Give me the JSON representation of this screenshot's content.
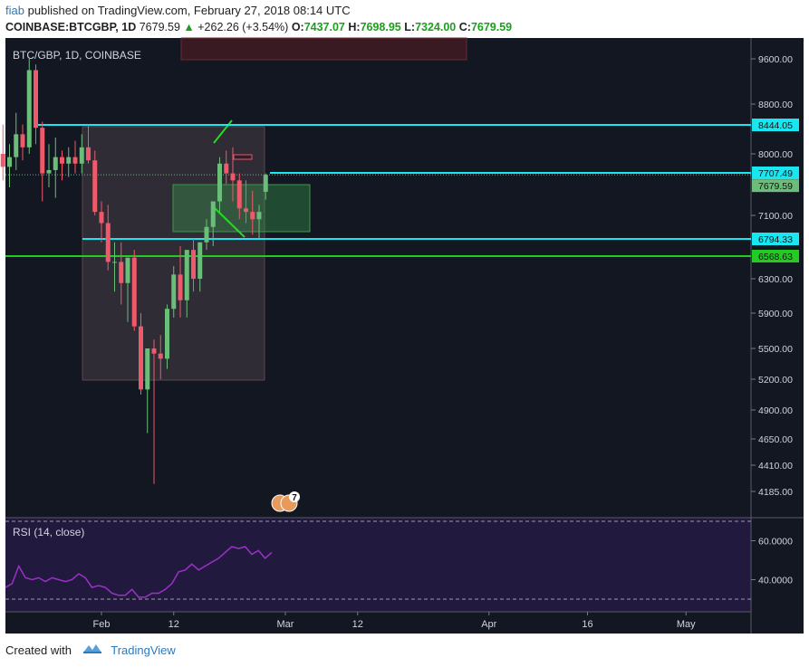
{
  "header": {
    "author": "fiab",
    "published": "published on TradingView.com, February 27, 2018 08:14 UTC",
    "symbol": "COINBASE:BTCGBP, 1D",
    "last": "7679.59",
    "change": "+262.26 (+3.54%)",
    "o_label": "O:",
    "o_value": "7437.07",
    "h_label": "H:",
    "h_value": "7698.95",
    "l_label": "L:",
    "l_value": "7324.00",
    "c_label": "C:",
    "c_value": "7679.59"
  },
  "footer": {
    "created_with": "Created with",
    "brand": "TradingView"
  },
  "colors": {
    "up": "#6bbd7a",
    "down": "#ef5a6a",
    "cyan": "#19e6f0",
    "green_line": "#22cc22",
    "rsi_line": "#9b30c8",
    "rsi_bg": "#221a3e",
    "chart_bg": "#131722"
  },
  "chart_data": {
    "type": "candlestick",
    "title": "BTC/GBP, 1D, COINBASE",
    "y_ticks": [
      9600,
      8800,
      8000,
      7100,
      6300,
      5900,
      5500,
      5200,
      4900,
      4650,
      4410,
      4185
    ],
    "y_tick_labels": [
      "9600.00",
      "8800.00",
      "8000.00",
      "7100.00",
      "6300.00",
      "5900.00",
      "5500.00",
      "5200.00",
      "4900.00",
      "4650.00",
      "4410.00",
      "4185.00"
    ],
    "x_labels": [
      "Feb",
      "12",
      "Mar",
      "12",
      "Apr",
      "16",
      "May"
    ],
    "x_dates": [
      "2018-02-01",
      "2018-02-12",
      "2018-03-01",
      "2018-03-12",
      "2018-04-01",
      "2018-04-16",
      "2018-05-01"
    ],
    "candles": [
      {
        "date": "2018-01-17",
        "o": 8000,
        "h": 8450,
        "l": 7600,
        "c": 7800
      },
      {
        "date": "2018-01-18",
        "o": 7800,
        "h": 8150,
        "l": 7500,
        "c": 7950
      },
      {
        "date": "2018-01-19",
        "o": 7950,
        "h": 8650,
        "l": 7750,
        "c": 8300
      },
      {
        "date": "2018-01-20",
        "o": 8300,
        "h": 8450,
        "l": 7900,
        "c": 8100
      },
      {
        "date": "2018-01-21",
        "o": 8100,
        "h": 9600,
        "l": 8000,
        "c": 9400
      },
      {
        "date": "2018-01-22",
        "o": 9400,
        "h": 9500,
        "l": 8150,
        "c": 8400
      },
      {
        "date": "2018-01-23",
        "o": 8400,
        "h": 8500,
        "l": 7300,
        "c": 7700
      },
      {
        "date": "2018-01-24",
        "o": 7700,
        "h": 8150,
        "l": 7500,
        "c": 7750
      },
      {
        "date": "2018-01-25",
        "o": 7750,
        "h": 8250,
        "l": 7350,
        "c": 7950
      },
      {
        "date": "2018-01-26",
        "o": 7950,
        "h": 8050,
        "l": 7600,
        "c": 7850
      },
      {
        "date": "2018-01-27",
        "o": 7850,
        "h": 8100,
        "l": 7650,
        "c": 7950
      },
      {
        "date": "2018-01-28",
        "o": 7950,
        "h": 8200,
        "l": 7700,
        "c": 7850
      },
      {
        "date": "2018-01-29",
        "o": 7850,
        "h": 8300,
        "l": 7700,
        "c": 8100
      },
      {
        "date": "2018-01-30",
        "o": 8100,
        "h": 8450,
        "l": 7850,
        "c": 7900
      },
      {
        "date": "2018-01-31",
        "o": 7900,
        "h": 8050,
        "l": 7100,
        "c": 7150
      },
      {
        "date": "2018-02-01",
        "o": 7150,
        "h": 7300,
        "l": 6750,
        "c": 7000
      },
      {
        "date": "2018-02-02",
        "o": 7000,
        "h": 7250,
        "l": 6400,
        "c": 6500
      },
      {
        "date": "2018-02-03",
        "o": 6500,
        "h": 6750,
        "l": 6150,
        "c": 6500
      },
      {
        "date": "2018-02-04",
        "o": 6500,
        "h": 6750,
        "l": 6000,
        "c": 6250
      },
      {
        "date": "2018-02-05",
        "o": 6250,
        "h": 6550,
        "l": 5800,
        "c": 6550
      },
      {
        "date": "2018-02-06",
        "o": 6550,
        "h": 6650,
        "l": 5700,
        "c": 5750
      },
      {
        "date": "2018-02-07",
        "o": 5750,
        "h": 5900,
        "l": 5050,
        "c": 5100
      },
      {
        "date": "2018-02-08",
        "o": 5100,
        "h": 5450,
        "l": 4700,
        "c": 5500
      },
      {
        "date": "2018-02-09",
        "o": 5500,
        "h": 5600,
        "l": 4250,
        "c": 5450
      },
      {
        "date": "2018-02-10",
        "o": 5450,
        "h": 5650,
        "l": 5200,
        "c": 5400
      },
      {
        "date": "2018-02-11",
        "o": 5400,
        "h": 6000,
        "l": 5300,
        "c": 5950
      },
      {
        "date": "2018-02-12",
        "o": 5950,
        "h": 6450,
        "l": 5850,
        "c": 6350
      },
      {
        "date": "2018-02-13",
        "o": 6350,
        "h": 6700,
        "l": 5850,
        "c": 6050
      },
      {
        "date": "2018-02-14",
        "o": 6050,
        "h": 6650,
        "l": 5850,
        "c": 6650
      },
      {
        "date": "2018-02-15",
        "o": 6650,
        "h": 6800,
        "l": 6150,
        "c": 6300
      },
      {
        "date": "2018-02-16",
        "o": 6300,
        "h": 6750,
        "l": 6150,
        "c": 6750
      },
      {
        "date": "2018-02-17",
        "o": 6750,
        "h": 7050,
        "l": 6650,
        "c": 6950
      },
      {
        "date": "2018-02-18",
        "o": 6950,
        "h": 7300,
        "l": 6700,
        "c": 7300
      },
      {
        "date": "2018-02-19",
        "o": 7300,
        "h": 7950,
        "l": 7150,
        "c": 7850
      },
      {
        "date": "2018-02-20",
        "o": 7850,
        "h": 8050,
        "l": 7550,
        "c": 7700
      },
      {
        "date": "2018-02-21",
        "o": 7700,
        "h": 8100,
        "l": 7300,
        "c": 7600
      },
      {
        "date": "2018-02-22",
        "o": 7600,
        "h": 7700,
        "l": 7050,
        "c": 7200
      },
      {
        "date": "2018-02-23",
        "o": 7200,
        "h": 7600,
        "l": 7000,
        "c": 7150
      },
      {
        "date": "2018-02-24",
        "o": 7150,
        "h": 7450,
        "l": 6850,
        "c": 7050
      },
      {
        "date": "2018-02-25",
        "o": 7050,
        "h": 7250,
        "l": 6800,
        "c": 7150
      },
      {
        "date": "2018-02-26",
        "o": 7437.07,
        "h": 7698.95,
        "l": 7324.0,
        "c": 7679.59
      }
    ],
    "levels": [
      {
        "name": "8444.05",
        "value": 8444.05,
        "color": "#19e6f0"
      },
      {
        "name": "7707.49",
        "value": 7707.49,
        "color": "#19e6f0"
      },
      {
        "name": "6794.33",
        "value": 6794.33,
        "color": "#19e6f0"
      },
      {
        "name": "6568.63",
        "value": 6568.63,
        "color": "#22cc22"
      }
    ],
    "last_price_label": "7679.59",
    "rsi": {
      "label": "RSI (14, close)",
      "y_ticks": [
        60,
        40
      ],
      "y_tick_labels": [
        "60.0000",
        "40.0000"
      ],
      "upper_band": 70,
      "lower_band": 30,
      "values": [
        36,
        38,
        47,
        41,
        40,
        41,
        39,
        41,
        40,
        39,
        40,
        43,
        41,
        36,
        37,
        36,
        33,
        32,
        32,
        35,
        31,
        31,
        33,
        33,
        35,
        38,
        44,
        45,
        48,
        45,
        47,
        49,
        51,
        54,
        57,
        56,
        57,
        53,
        55,
        51,
        54
      ]
    },
    "event_badge": "7"
  }
}
